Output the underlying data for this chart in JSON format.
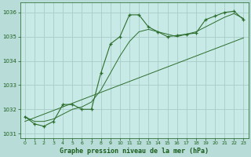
{
  "title": "Graphe pression niveau de la mer (hPa)",
  "bg_color": "#b8ddd9",
  "plot_bg_color": "#c8eae7",
  "line_color": "#2d6e2d",
  "grid_color": "#a8ccc9",
  "text_color": "#1a5c1a",
  "x_hours": [
    0,
    1,
    2,
    3,
    4,
    5,
    6,
    7,
    8,
    9,
    10,
    11,
    12,
    13,
    14,
    15,
    16,
    17,
    18,
    19,
    20,
    21,
    22,
    23
  ],
  "main_values": [
    1031.7,
    1031.4,
    1031.3,
    1031.5,
    1032.2,
    1032.2,
    1032.0,
    1032.0,
    1033.5,
    1034.7,
    1035.0,
    1035.9,
    1035.9,
    1035.4,
    1035.2,
    1035.0,
    1035.05,
    1035.1,
    1035.15,
    1035.7,
    1035.85,
    1036.0,
    1036.05,
    1035.7
  ],
  "smooth_values": [
    1031.7,
    1031.5,
    1031.5,
    1031.6,
    1031.8,
    1032.0,
    1032.1,
    1032.3,
    1032.8,
    1033.5,
    1034.2,
    1034.8,
    1035.2,
    1035.3,
    1035.2,
    1035.1,
    1035.0,
    1035.1,
    1035.2,
    1035.4,
    1035.6,
    1035.8,
    1035.95,
    1035.75
  ],
  "linreg_values": [
    1031.5,
    1031.65,
    1031.8,
    1031.95,
    1032.1,
    1032.25,
    1032.4,
    1032.55,
    1032.7,
    1032.85,
    1033.0,
    1033.15,
    1033.3,
    1033.45,
    1033.6,
    1033.75,
    1033.9,
    1034.05,
    1034.2,
    1034.35,
    1034.5,
    1034.65,
    1034.8,
    1034.95
  ],
  "ylim": [
    1030.8,
    1036.4
  ],
  "yticks": [
    1031,
    1032,
    1033,
    1034,
    1035,
    1036
  ],
  "xticks": [
    0,
    1,
    2,
    3,
    4,
    5,
    6,
    7,
    8,
    9,
    10,
    11,
    12,
    13,
    14,
    15,
    16,
    17,
    18,
    19,
    20,
    21,
    22,
    23
  ]
}
